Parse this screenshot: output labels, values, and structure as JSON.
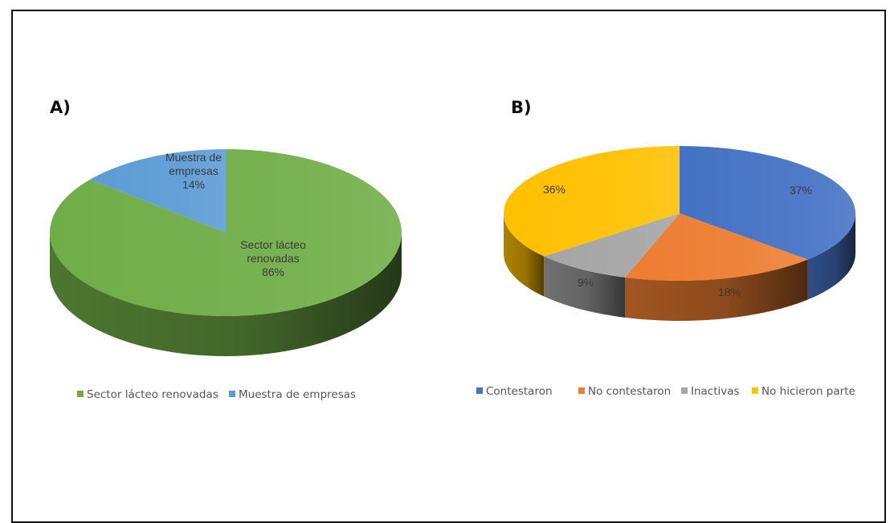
{
  "chart_data": [
    {
      "panel_label": "A)",
      "type": "pie",
      "slices": [
        {
          "name": "Sector lácteo renovadas",
          "label_lines": [
            "Sector lácteo",
            "renovadas"
          ],
          "percent_text": "86%",
          "value": 86,
          "color": "#70AD47"
        },
        {
          "name": "Muestra de empresas",
          "label_lines": [
            "Muestra de",
            "empresas"
          ],
          "percent_text": "14%",
          "value": 14,
          "color": "#5B9BD5"
        }
      ],
      "legend": [
        "Sector lácteo renovadas",
        "Muestra de empresas"
      ],
      "legend_position": "bottom"
    },
    {
      "panel_label": "B)",
      "type": "pie",
      "slices": [
        {
          "name": "Contestaron",
          "percent_text": "37%",
          "value": 37,
          "color": "#4472C4"
        },
        {
          "name": "No contestaron",
          "percent_text": "18%",
          "value": 18,
          "color": "#ED7D31"
        },
        {
          "name": "Inactivas",
          "percent_text": "9%",
          "value": 9,
          "color": "#A5A5A5"
        },
        {
          "name": "No hicieron parte",
          "percent_text": "36%",
          "value": 36,
          "color": "#FFC000"
        }
      ],
      "legend": [
        "Contestaron",
        "No contestaron",
        "Inactivas",
        "No hicieron parte"
      ],
      "legend_position": "bottom"
    }
  ]
}
